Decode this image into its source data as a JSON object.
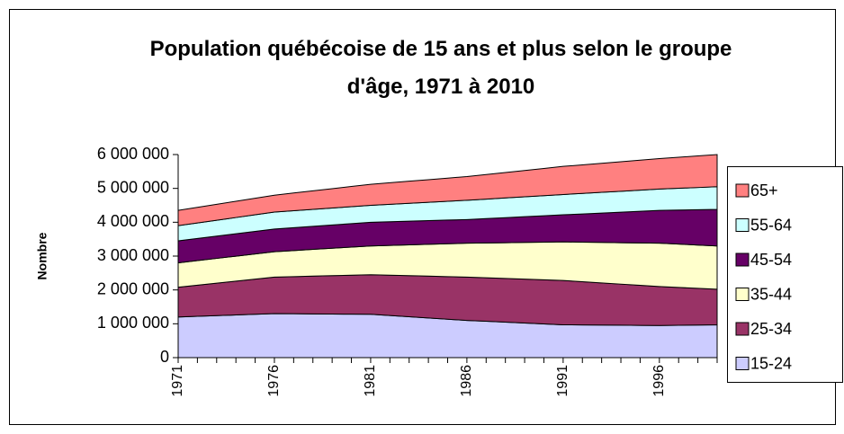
{
  "chart_data": {
    "type": "stacked_area",
    "title": "Population québécoise de 15 ans et plus selon le groupe d'âge, 1971 à 2010",
    "y_label": "Nombre",
    "categories": [
      "1971",
      null,
      null,
      null,
      null,
      "1976",
      null,
      null,
      null,
      null,
      "1981",
      null,
      null,
      null,
      null,
      "1986",
      null,
      null,
      null,
      null,
      "1991",
      null,
      null,
      null,
      null,
      "1996",
      null,
      null,
      null
    ],
    "ylim": [
      0,
      6000000
    ],
    "yticks": [
      0,
      {
        "value": 1000000,
        "label": "1 000 000"
      },
      {
        "value": 2000000,
        "label": "2 000 000"
      },
      {
        "value": 3000000,
        "label": "3 000 000"
      },
      {
        "value": 4000000,
        "label": "4 000 000"
      },
      {
        "value": 5000000,
        "label": "5 000 000"
      },
      {
        "value": 6000000,
        "label": "6 000 000"
      }
    ],
    "legend": "right",
    "series": [
      {
        "name": "15-24",
        "color": "#ccccff",
        "values": [
          1200000,
          1220000,
          1240000,
          1260000,
          1280000,
          1300000,
          1296000,
          1292000,
          1288000,
          1284000,
          1280000,
          1244000,
          1208000,
          1172000,
          1136000,
          1100000,
          1074000,
          1048000,
          1022000,
          996000,
          970000,
          966000,
          962000,
          958000,
          954000,
          950000,
          957000,
          963000,
          970000
        ]
      },
      {
        "name": "25-34",
        "color": "#993366",
        "values": [
          880000,
          920000,
          960000,
          1000000,
          1040000,
          1080000,
          1098000,
          1116000,
          1134000,
          1152000,
          1170000,
          1192000,
          1214000,
          1236000,
          1258000,
          1280000,
          1286000,
          1292000,
          1298000,
          1304000,
          1310000,
          1278000,
          1246000,
          1214000,
          1182000,
          1150000,
          1117000,
          1083000,
          1050000
        ]
      },
      {
        "name": "35-44",
        "color": "#ffffcc",
        "values": [
          720000,
          726000,
          732000,
          738000,
          744000,
          750000,
          770000,
          790000,
          810000,
          830000,
          850000,
          880000,
          910000,
          940000,
          970000,
          1000000,
          1028000,
          1056000,
          1084000,
          1112000,
          1140000,
          1168000,
          1196000,
          1224000,
          1252000,
          1280000,
          1280000,
          1280000,
          1280000
        ]
      },
      {
        "name": "45-54",
        "color": "#660066",
        "values": [
          650000,
          654000,
          658000,
          662000,
          666000,
          670000,
          676000,
          682000,
          688000,
          694000,
          700000,
          700000,
          700000,
          700000,
          700000,
          700000,
          720000,
          740000,
          760000,
          780000,
          800000,
          834000,
          868000,
          902000,
          936000,
          970000,
          1007000,
          1043000,
          1080000
        ]
      },
      {
        "name": "55-64",
        "color": "#ccffff",
        "values": [
          450000,
          460000,
          470000,
          480000,
          490000,
          500000,
          500000,
          500000,
          500000,
          500000,
          500000,
          514000,
          528000,
          542000,
          556000,
          570000,
          576000,
          582000,
          588000,
          594000,
          600000,
          606000,
          612000,
          618000,
          624000,
          630000,
          643000,
          657000,
          670000
        ]
      },
      {
        "name": "65+",
        "color": "#ff8080",
        "values": [
          450000,
          460000,
          470000,
          480000,
          490000,
          500000,
          524000,
          548000,
          572000,
          596000,
          620000,
          636000,
          652000,
          668000,
          684000,
          700000,
          726000,
          752000,
          778000,
          804000,
          830000,
          844000,
          858000,
          872000,
          886000,
          900000,
          917000,
          933000,
          950000
        ]
      }
    ]
  }
}
